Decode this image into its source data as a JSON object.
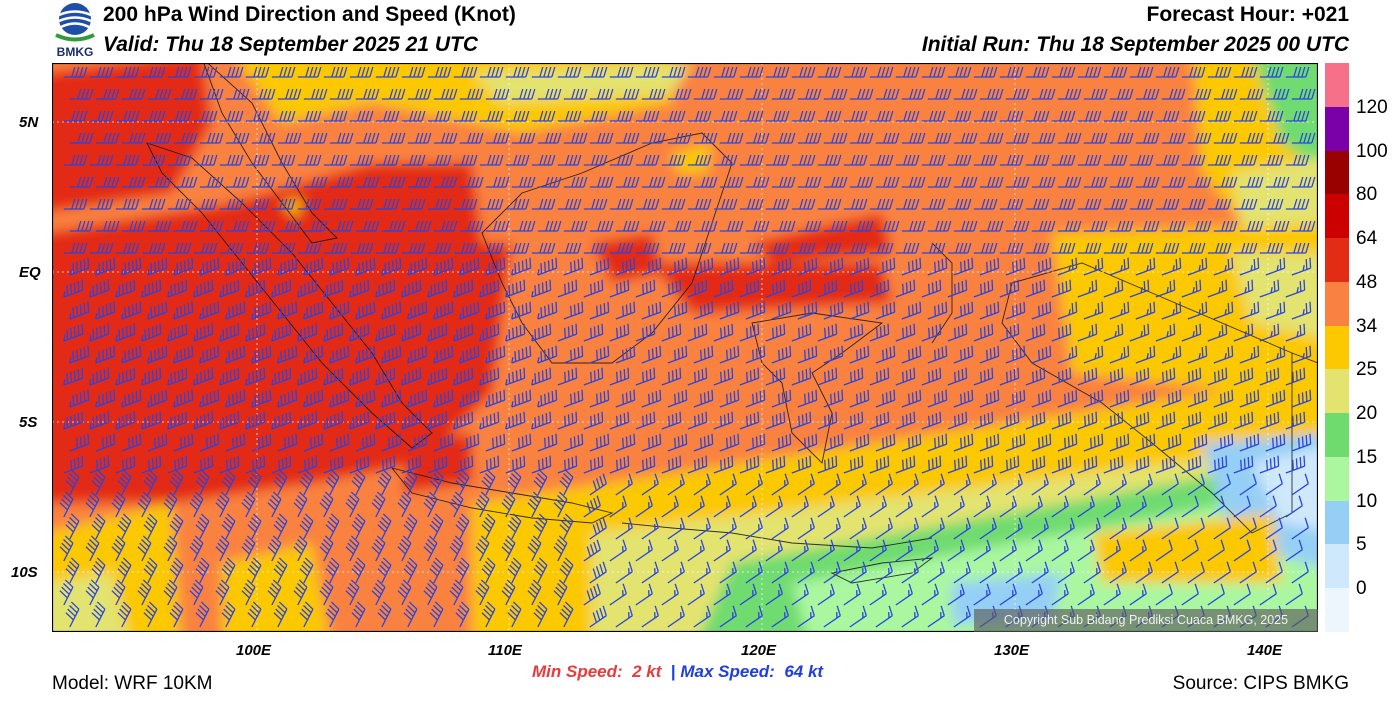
{
  "header": {
    "title": "200 hPa Wind Direction and Speed (Knot)",
    "valid": "Valid: Thu 18 September 2025 21 UTC",
    "forecast_hour": "Forecast Hour: +021",
    "initial_run": "Initial Run: Thu 18 September 2025 00 UTC",
    "logo_text": "BMKG"
  },
  "axes": {
    "lat_labels": [
      "5N",
      "EQ",
      "5S",
      "10S"
    ],
    "lon_labels": [
      "100E",
      "110E",
      "120E",
      "130E",
      "140E"
    ]
  },
  "colorbar": {
    "labels": [
      "0",
      "5",
      "10",
      "15",
      "20",
      "25",
      "34",
      "48",
      "64",
      "80",
      "100",
      "120"
    ],
    "colors": [
      "#eef6fd",
      "#cfe8fb",
      "#96cff5",
      "#aaf7a0",
      "#6fdb6f",
      "#e3e370",
      "#fcc800",
      "#fa8240",
      "#e32c14",
      "#cc0000",
      "#990000",
      "#7a00a8",
      "#f7708a"
    ]
  },
  "stats": {
    "min_label": "Min Speed:",
    "min_value": "2 kt",
    "separator": "|",
    "max_label": "Max Speed:",
    "max_value": "64 kt"
  },
  "footer": {
    "model": "Model: WRF 10KM",
    "source": "Source: CIPS BMKG",
    "copyright": "Copyright Sub Bidang Prediksi Cuaca BMKG, 2025"
  },
  "map": {
    "region": "Indonesia",
    "lat_range": [
      -12,
      7
    ],
    "lon_range": [
      92,
      142
    ],
    "barb_color": "#2a45e0",
    "barb_field": [
      {
        "lat_range": [
          -2,
          7
        ],
        "direction": "westward",
        "speed_band": "34-48 kt"
      },
      {
        "lat_range": [
          -7,
          -2
        ],
        "direction": "westward",
        "speed_band": "48-64 kt",
        "lon_range": [
          92,
          112
        ]
      },
      {
        "lat_range": [
          -12,
          -8
        ],
        "direction": "south-westward",
        "speed_band": "5-25 kt",
        "lon_range": [
          115,
          142
        ]
      }
    ]
  }
}
